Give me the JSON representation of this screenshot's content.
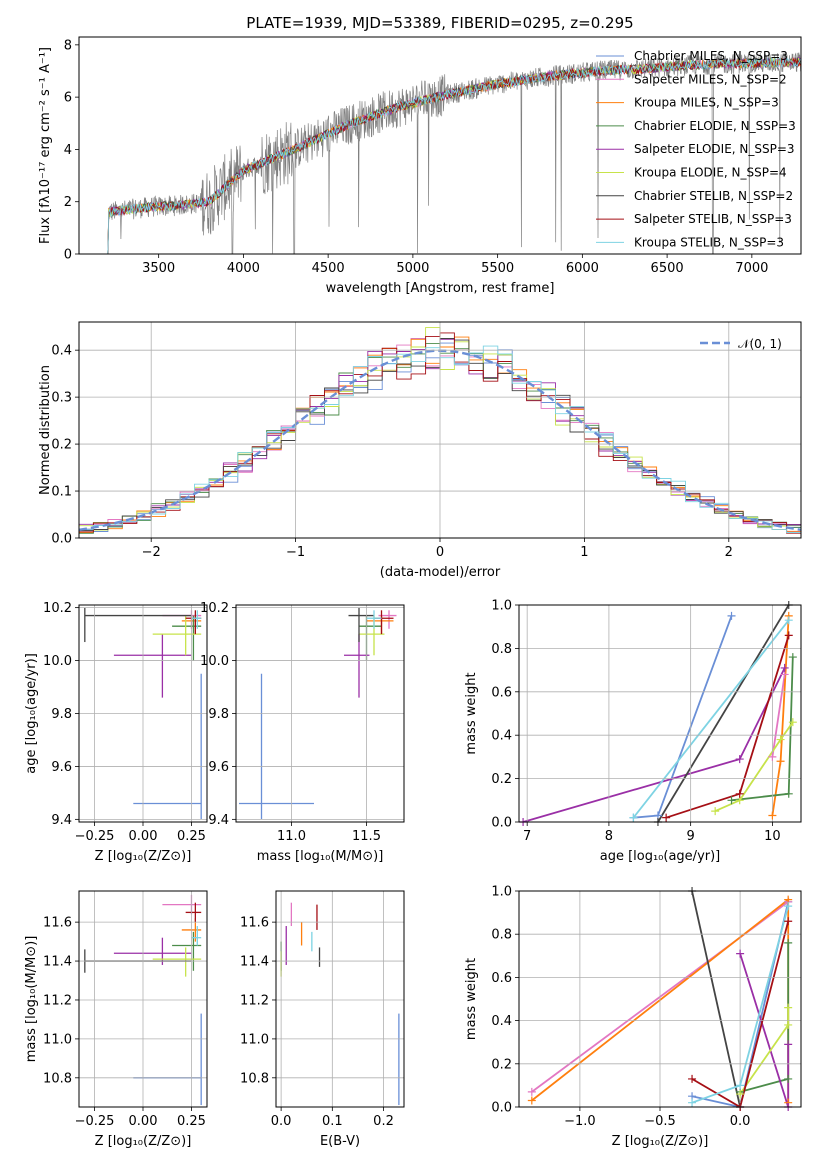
{
  "colors": [
    "#6a8fd6",
    "#e377c2",
    "#ff7f0e",
    "#4c8c4a",
    "#9a2fa6",
    "#c7e34a",
    "#444444",
    "#a50f15",
    "#7ed3e3"
  ],
  "chart_data": [
    {
      "type": "line",
      "title": "PLATE=1939, MJD=53389, FIBERID=0295, z=0.295",
      "xlabel": "wavelength [Angstrom, rest frame]",
      "ylabel": "Flux [fλ10⁻¹⁷ erg cm⁻² s⁻¹ A⁻¹]",
      "xlim": [
        3030,
        7290
      ],
      "ylim": [
        0,
        8.3
      ],
      "xticks": [
        3500,
        4000,
        4500,
        5000,
        5500,
        6000,
        6500,
        7000
      ],
      "yticks": [
        0,
        2,
        4,
        6,
        8
      ],
      "grid": false,
      "legend": "top-right",
      "series": [
        {
          "name": "Chabrier MILES, N_SSP=3"
        },
        {
          "name": "Salpeter MILES, N_SSP=2"
        },
        {
          "name": "Kroupa MILES, N_SSP=3"
        },
        {
          "name": "Chabrier ELODIE, N_SSP=3"
        },
        {
          "name": "Salpeter ELODIE, N_SSP=3"
        },
        {
          "name": "Kroupa ELODIE, N_SSP=4"
        },
        {
          "name": "Chabrier STELIB, N_SSP=2"
        },
        {
          "name": "Salpeter STELIB, N_SSP=3"
        },
        {
          "name": "Kroupa STELIB, N_SSP=3"
        }
      ],
      "data_line": {
        "color": "#808080",
        "x_start": 3200,
        "x_end": 7290
      },
      "continuum": {
        "x": [
          3200,
          3450,
          3600,
          3800,
          4000,
          4300,
          4600,
          4900,
          5200,
          5500,
          5800,
          6100,
          6400,
          6700,
          7000,
          7290
        ],
        "y": [
          1.6,
          1.8,
          1.85,
          2.0,
          3.2,
          4.0,
          4.9,
          5.6,
          6.1,
          6.5,
          6.8,
          7.0,
          7.1,
          7.25,
          7.3,
          7.35
        ]
      }
    },
    {
      "type": "histogram",
      "xlabel": "(data-model)/error",
      "ylabel": "Normed distribution",
      "xlim": [
        -2.5,
        2.5
      ],
      "ylim": [
        0,
        0.46
      ],
      "xticks": [
        -2,
        -1,
        0,
        1,
        2
      ],
      "yticks": [
        0.0,
        0.1,
        0.2,
        0.3,
        0.4
      ],
      "grid": true,
      "legend": "top-right",
      "reference": {
        "name": "𝒩(0, 1)",
        "color": "#6a8fd6",
        "mu": 0,
        "sigma": 1
      },
      "bin_width": 0.1
    },
    {
      "type": "scatter",
      "xlabel": "Z [log₁₀(Z/Z⊙)]",
      "ylabel": "age  [log₁₀(age/yr)]",
      "xlim": [
        -0.33,
        0.33
      ],
      "ylim": [
        9.39,
        10.21
      ],
      "xticks": [
        -0.25,
        0.0,
        0.25
      ],
      "xticklabels": [
        "−0.25",
        "0.00",
        "0.25"
      ],
      "yticks": [
        9.4,
        9.6,
        9.8,
        10.0,
        10.2
      ],
      "grid": true,
      "points": [
        {
          "x": 0.3,
          "y": 9.46,
          "xlo": -0.05,
          "xhi": 0.3,
          "ylo": 9.4,
          "yhi": 9.95
        },
        {
          "x": 0.25,
          "y": 10.17,
          "xlo": 0.1,
          "xhi": 0.3,
          "ylo": 10.12,
          "yhi": 10.19
        },
        {
          "x": 0.27,
          "y": 10.15,
          "xlo": 0.2,
          "xhi": 0.3,
          "ylo": 10.1,
          "yhi": 10.17
        },
        {
          "x": 0.26,
          "y": 10.13,
          "xlo": 0.15,
          "xhi": 0.3,
          "ylo": 10.0,
          "yhi": 10.17
        },
        {
          "x": 0.1,
          "y": 10.02,
          "xlo": -0.15,
          "xhi": 0.25,
          "ylo": 9.86,
          "yhi": 10.1
        },
        {
          "x": 0.22,
          "y": 10.1,
          "xlo": 0.05,
          "xhi": 0.3,
          "ylo": 10.02,
          "yhi": 10.17
        },
        {
          "x": -0.3,
          "y": 10.17,
          "xlo": -0.3,
          "xhi": 0.25,
          "ylo": 10.07,
          "yhi": 10.2
        },
        {
          "x": 0.27,
          "y": 10.16,
          "xlo": 0.22,
          "xhi": 0.3,
          "ylo": 10.1,
          "yhi": 10.19
        },
        {
          "x": 0.28,
          "y": 10.16,
          "xlo": 0.25,
          "xhi": 0.3,
          "ylo": 10.12,
          "yhi": 10.19
        }
      ]
    },
    {
      "type": "scatter",
      "xlabel": "mass [log₁₀(M/M⊙)]",
      "ylabel": "",
      "xlim": [
        10.63,
        11.75
      ],
      "ylim": [
        9.39,
        10.21
      ],
      "xticks": [
        11.0,
        11.5
      ],
      "xticklabels": [
        "11.0",
        "11.5"
      ],
      "yticks": [
        9.4,
        9.6,
        9.8,
        10.0,
        10.2
      ],
      "grid": true,
      "points": [
        {
          "x": 10.8,
          "y": 9.46,
          "xlo": 10.65,
          "xhi": 11.15,
          "ylo": 9.4,
          "yhi": 9.95
        },
        {
          "x": 11.65,
          "y": 10.17,
          "xlo": 11.58,
          "xhi": 11.7,
          "ylo": 10.12,
          "yhi": 10.19
        },
        {
          "x": 11.6,
          "y": 10.15,
          "xlo": 11.5,
          "xhi": 11.68,
          "ylo": 10.1,
          "yhi": 10.17
        },
        {
          "x": 11.5,
          "y": 10.13,
          "xlo": 11.45,
          "xhi": 11.6,
          "ylo": 10.0,
          "yhi": 10.17
        },
        {
          "x": 11.45,
          "y": 10.02,
          "xlo": 11.35,
          "xhi": 11.52,
          "ylo": 9.86,
          "yhi": 10.1
        },
        {
          "x": 11.55,
          "y": 10.1,
          "xlo": 11.45,
          "xhi": 11.62,
          "ylo": 10.02,
          "yhi": 10.17
        },
        {
          "x": 11.45,
          "y": 10.17,
          "xlo": 11.38,
          "xhi": 11.55,
          "ylo": 10.07,
          "yhi": 10.2
        },
        {
          "x": 11.6,
          "y": 10.16,
          "xlo": 11.55,
          "xhi": 11.68,
          "ylo": 10.1,
          "yhi": 10.19
        },
        {
          "x": 11.55,
          "y": 10.16,
          "xlo": 11.5,
          "xhi": 11.6,
          "ylo": 10.12,
          "yhi": 10.19
        }
      ]
    },
    {
      "type": "line",
      "xlabel": "age  [log₁₀(age/yr)]",
      "ylabel": "mass weight",
      "xlim": [
        6.9,
        10.35
      ],
      "ylim": [
        0,
        1
      ],
      "xticks": [
        7,
        8,
        9,
        10
      ],
      "xticklabels": [
        "7",
        "8",
        "9",
        "10"
      ],
      "yticks": [
        0.0,
        0.2,
        0.4,
        0.6,
        0.8,
        1.0
      ],
      "grid": true,
      "lines": [
        {
          "x": [
            8.3,
            8.6,
            9.5
          ],
          "y": [
            0.02,
            0.03,
            0.95
          ]
        },
        {
          "x": [
            10.0,
            10.15
          ],
          "y": [
            0.3,
            0.68
          ]
        },
        {
          "x": [
            10.0,
            10.1,
            10.2
          ],
          "y": [
            0.03,
            0.28,
            0.95
          ]
        },
        {
          "x": [
            9.5,
            10.2,
            10.25
          ],
          "y": [
            0.1,
            0.13,
            0.76
          ]
        },
        {
          "x": [
            6.95,
            9.6,
            10.15
          ],
          "y": [
            0.0,
            0.29,
            0.71
          ]
        },
        {
          "x": [
            9.3,
            9.6,
            10.1,
            10.25
          ],
          "y": [
            0.05,
            0.1,
            0.38,
            0.46
          ]
        },
        {
          "x": [
            8.6,
            10.2
          ],
          "y": [
            0.0,
            1.0
          ]
        },
        {
          "x": [
            8.7,
            9.6,
            10.2
          ],
          "y": [
            0.02,
            0.13,
            0.86
          ]
        },
        {
          "x": [
            8.3,
            10.2
          ],
          "y": [
            0.02,
            0.93
          ]
        }
      ]
    },
    {
      "type": "scatter",
      "xlabel": "Z [log₁₀(Z/Z⊙)]",
      "ylabel": "mass [log₁₀(M/M⊙)]",
      "xlim": [
        -0.33,
        0.33
      ],
      "ylim": [
        10.65,
        11.76
      ],
      "xticks": [
        -0.25,
        0.0,
        0.25
      ],
      "xticklabels": [
        "−0.25",
        "0.00",
        "0.25"
      ],
      "yticks": [
        10.8,
        11.0,
        11.2,
        11.4,
        11.6
      ],
      "grid": true,
      "points": [
        {
          "x": 0.3,
          "y": 10.8,
          "xlo": -0.05,
          "xhi": 0.3,
          "ylo": 10.66,
          "yhi": 11.13
        },
        {
          "x": 0.25,
          "y": 11.69,
          "xlo": 0.1,
          "xhi": 0.3,
          "ylo": 11.64,
          "yhi": 11.74
        },
        {
          "x": 0.27,
          "y": 11.56,
          "xlo": 0.2,
          "xhi": 0.3,
          "ylo": 11.5,
          "yhi": 11.62
        },
        {
          "x": 0.26,
          "y": 11.48,
          "xlo": 0.15,
          "xhi": 0.3,
          "ylo": 11.35,
          "yhi": 11.55
        },
        {
          "x": 0.1,
          "y": 11.44,
          "xlo": -0.15,
          "xhi": 0.25,
          "ylo": 11.38,
          "yhi": 11.52
        },
        {
          "x": 0.22,
          "y": 11.41,
          "xlo": 0.05,
          "xhi": 0.3,
          "ylo": 11.32,
          "yhi": 11.47
        },
        {
          "x": -0.3,
          "y": 11.4,
          "xlo": -0.3,
          "xhi": 0.25,
          "ylo": 11.34,
          "yhi": 11.46
        },
        {
          "x": 0.27,
          "y": 11.65,
          "xlo": 0.22,
          "xhi": 0.3,
          "ylo": 11.6,
          "yhi": 11.7
        },
        {
          "x": 0.28,
          "y": 11.52,
          "xlo": 0.25,
          "xhi": 0.3,
          "ylo": 11.48,
          "yhi": 11.58
        }
      ]
    },
    {
      "type": "scatter",
      "xlabel": "E(B-V)",
      "ylabel": "",
      "xlim": [
        -0.01,
        0.24
      ],
      "ylim": [
        10.65,
        11.76
      ],
      "xticks": [
        0.0,
        0.1,
        0.2
      ],
      "xticklabels": [
        "0.0",
        "0.1",
        "0.2"
      ],
      "yticks": [
        10.8,
        11.0,
        11.2,
        11.4,
        11.6
      ],
      "grid": true,
      "points": [
        {
          "x": 0.23,
          "y": 10.8,
          "ylo": 10.66,
          "yhi": 11.13
        },
        {
          "x": 0.02,
          "y": 11.63,
          "ylo": 11.58,
          "yhi": 11.7
        },
        {
          "x": 0.04,
          "y": 11.53,
          "ylo": 11.48,
          "yhi": 11.6
        },
        {
          "x": 0.0,
          "y": 11.44,
          "ylo": 11.35,
          "yhi": 11.5
        },
        {
          "x": 0.01,
          "y": 11.44,
          "ylo": 11.38,
          "yhi": 11.58
        },
        {
          "x": 0.0,
          "y": 11.38,
          "ylo": 11.32,
          "yhi": 11.45
        },
        {
          "x": 0.075,
          "y": 11.42,
          "ylo": 11.37,
          "yhi": 11.47
        },
        {
          "x": 0.07,
          "y": 11.63,
          "ylo": 11.56,
          "yhi": 11.69
        },
        {
          "x": 0.06,
          "y": 11.5,
          "ylo": 11.45,
          "yhi": 11.55
        }
      ]
    },
    {
      "type": "line",
      "xlabel": "Z [log₁₀(Z/Z⊙)]",
      "ylabel": "mass weight",
      "xlim": [
        -1.38,
        0.38
      ],
      "ylim": [
        0,
        1
      ],
      "xticks": [
        -1.0,
        -0.5,
        0.0
      ],
      "xticklabels": [
        "−1.0",
        "−0.5",
        "0.0"
      ],
      "yticks": [
        0.0,
        0.2,
        0.4,
        0.6,
        0.8,
        1.0
      ],
      "grid": true,
      "lines": [
        {
          "x": [
            -0.3,
            0.0,
            0.3
          ],
          "y": [
            0.05,
            0.0,
            0.95
          ]
        },
        {
          "x": [
            -1.3,
            0.3
          ],
          "y": [
            0.07,
            0.95
          ]
        },
        {
          "x": [
            -1.3,
            0.3,
            0.3
          ],
          "y": [
            0.03,
            0.96,
            0.02
          ]
        },
        {
          "x": [
            0.0,
            0.3,
            0.3
          ],
          "y": [
            0.07,
            0.13,
            0.76
          ]
        },
        {
          "x": [
            0.0,
            0.3,
            0.3
          ],
          "y": [
            0.71,
            0.0,
            0.29
          ]
        },
        {
          "x": [
            0.0,
            0.3,
            0.3
          ],
          "y": [
            0.06,
            0.38,
            0.46
          ]
        },
        {
          "x": [
            -0.3,
            0.0
          ],
          "y": [
            1.0,
            0.0
          ]
        },
        {
          "x": [
            -0.3,
            0.0,
            0.3
          ],
          "y": [
            0.13,
            0.0,
            0.86
          ]
        },
        {
          "x": [
            -0.3,
            0.0,
            0.3
          ],
          "y": [
            0.02,
            0.1,
            0.93
          ]
        }
      ]
    }
  ]
}
